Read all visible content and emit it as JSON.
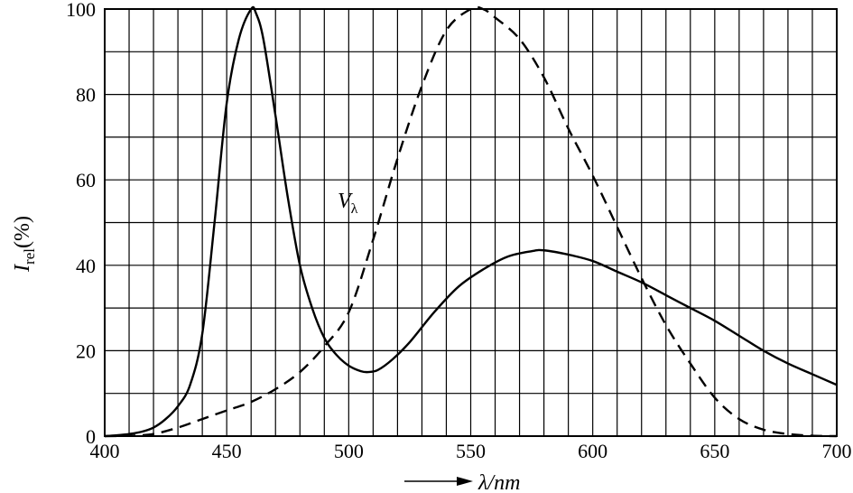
{
  "chart_data": {
    "type": "line",
    "xlabel": "λ/nm",
    "ylabel_main": "I",
    "ylabel_sub": "rel",
    "ylabel_unit": "(%)",
    "xlim": [
      400,
      700
    ],
    "ylim": [
      0,
      100
    ],
    "x_ticks": [
      400,
      450,
      500,
      550,
      600,
      650,
      700
    ],
    "y_ticks": [
      0,
      20,
      40,
      60,
      80,
      100
    ],
    "x_tick_labels": [
      "400",
      "450",
      "500",
      "550",
      "600",
      "650",
      "700"
    ],
    "y_tick_labels": [
      "0",
      "20",
      "40",
      "60",
      "80",
      "100"
    ],
    "grid": true,
    "x_grid_step": 10,
    "y_grid_step": 10,
    "series": [
      {
        "style": "solid",
        "points": [
          [
            400,
            0
          ],
          [
            405,
            0.2
          ],
          [
            410,
            0.5
          ],
          [
            415,
            1
          ],
          [
            420,
            2
          ],
          [
            425,
            4
          ],
          [
            430,
            7
          ],
          [
            435,
            12
          ],
          [
            440,
            24
          ],
          [
            445,
            50
          ],
          [
            450,
            78
          ],
          [
            455,
            93
          ],
          [
            460,
            100
          ],
          [
            462,
            99
          ],
          [
            465,
            93
          ],
          [
            470,
            75
          ],
          [
            475,
            56
          ],
          [
            480,
            40
          ],
          [
            485,
            30
          ],
          [
            490,
            23
          ],
          [
            495,
            19
          ],
          [
            500,
            16.5
          ],
          [
            505,
            15.2
          ],
          [
            508,
            15
          ],
          [
            512,
            15.5
          ],
          [
            518,
            18
          ],
          [
            525,
            22
          ],
          [
            535,
            29
          ],
          [
            545,
            35
          ],
          [
            555,
            39
          ],
          [
            565,
            42
          ],
          [
            575,
            43.3
          ],
          [
            580,
            43.5
          ],
          [
            590,
            42.5
          ],
          [
            600,
            41
          ],
          [
            610,
            38.5
          ],
          [
            620,
            36
          ],
          [
            630,
            33
          ],
          [
            640,
            30
          ],
          [
            650,
            27
          ],
          [
            660,
            23.5
          ],
          [
            670,
            20
          ],
          [
            680,
            17
          ],
          [
            690,
            14.5
          ],
          [
            700,
            12
          ]
        ]
      },
      {
        "style": "dashed",
        "name_main": "V",
        "name_sub": "λ",
        "points": [
          [
            400,
            0
          ],
          [
            410,
            0.1
          ],
          [
            420,
            0.5
          ],
          [
            430,
            2
          ],
          [
            440,
            4
          ],
          [
            450,
            6
          ],
          [
            460,
            8
          ],
          [
            470,
            11
          ],
          [
            480,
            15
          ],
          [
            490,
            21
          ],
          [
            500,
            29
          ],
          [
            510,
            46
          ],
          [
            520,
            65
          ],
          [
            530,
            82
          ],
          [
            540,
            95
          ],
          [
            550,
            100
          ],
          [
            555,
            100
          ],
          [
            560,
            98
          ],
          [
            570,
            93
          ],
          [
            580,
            84
          ],
          [
            590,
            72
          ],
          [
            600,
            61
          ],
          [
            610,
            49
          ],
          [
            620,
            37
          ],
          [
            630,
            26
          ],
          [
            640,
            17
          ],
          [
            650,
            9
          ],
          [
            660,
            4
          ],
          [
            670,
            1.5
          ],
          [
            680,
            0.5
          ],
          [
            690,
            0.1
          ],
          [
            700,
            0
          ]
        ]
      }
    ]
  }
}
